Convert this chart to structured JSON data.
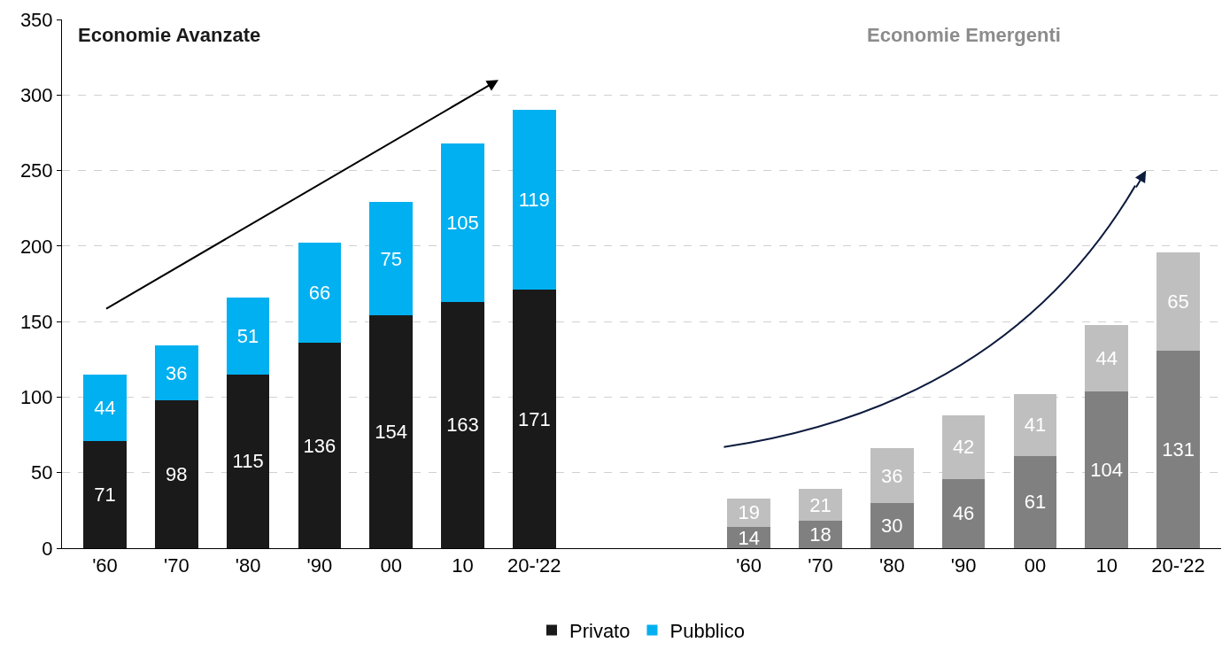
{
  "chart_data": {
    "type": "bar",
    "stacked": true,
    "data_labels": true,
    "categories": [
      "'60",
      "'70",
      "'80",
      "'90",
      "00",
      "10",
      "20-'22",
      null,
      null,
      "'60",
      "'70",
      "'80",
      "'90",
      "00",
      "10",
      "20-'22"
    ],
    "series": [
      {
        "name": "Privato",
        "colors": [
          "#1a1a1a",
          "#1a1a1a",
          "#1a1a1a",
          "#1a1a1a",
          "#1a1a1a",
          "#1a1a1a",
          "#1a1a1a",
          null,
          null,
          "#808080",
          "#808080",
          "#808080",
          "#808080",
          "#808080",
          "#808080",
          "#808080"
        ],
        "values": [
          71,
          98,
          115,
          136,
          154,
          163,
          171,
          null,
          null,
          14,
          18,
          30,
          46,
          61,
          104,
          131
        ]
      },
      {
        "name": "Pubblico",
        "colors": [
          "#00b0f0",
          "#00b0f0",
          "#00b0f0",
          "#00b0f0",
          "#00b0f0",
          "#00b0f0",
          "#00b0f0",
          null,
          null,
          "#bfbfbf",
          "#bfbfbf",
          "#bfbfbf",
          "#bfbfbf",
          "#bfbfbf",
          "#bfbfbf",
          "#bfbfbf"
        ],
        "values": [
          44,
          36,
          51,
          66,
          75,
          105,
          119,
          null,
          null,
          19,
          21,
          36,
          42,
          41,
          44,
          65
        ]
      }
    ],
    "annotations": [
      "Economie Avanzate",
      "Economie Emergenti"
    ],
    "ylim": [
      0,
      350
    ],
    "yticks": [
      0,
      50,
      100,
      150,
      200,
      250,
      300,
      350
    ],
    "grid": "y",
    "legend": "bottom"
  }
}
